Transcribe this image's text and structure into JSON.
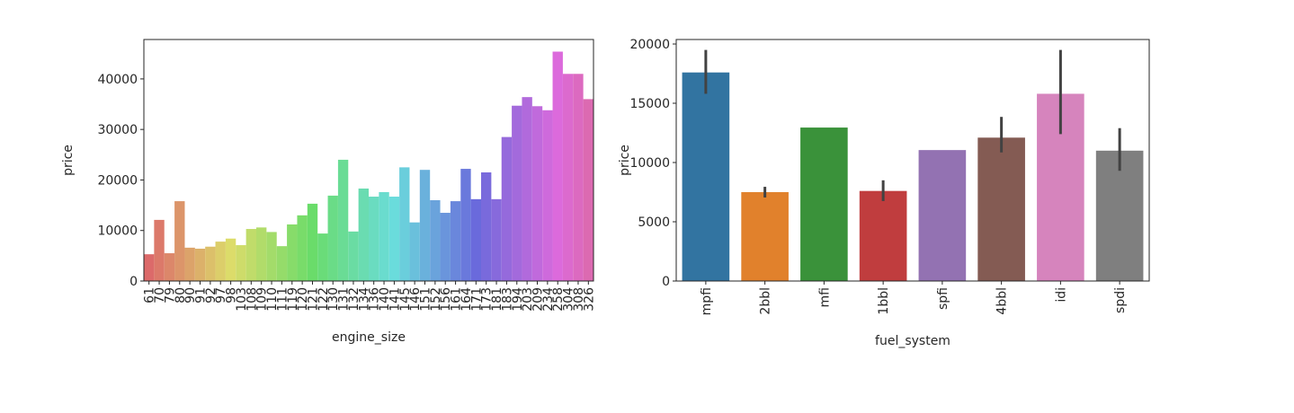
{
  "chart_data": [
    {
      "type": "bar",
      "xlabel": "engine_size",
      "ylabel": "price",
      "palette": "husl",
      "categories": [
        "61",
        "70",
        "79",
        "80",
        "90",
        "91",
        "92",
        "97",
        "98",
        "103",
        "108",
        "109",
        "110",
        "111",
        "119",
        "120",
        "121",
        "122",
        "130",
        "131",
        "132",
        "134",
        "136",
        "140",
        "141",
        "145",
        "146",
        "151",
        "152",
        "156",
        "161",
        "164",
        "171",
        "173",
        "181",
        "183",
        "194",
        "203",
        "209",
        "234",
        "258",
        "304",
        "308",
        "326"
      ],
      "values": [
        5300,
        12100,
        5500,
        15800,
        6600,
        6400,
        6800,
        7800,
        8400,
        7100,
        10300,
        10600,
        9700,
        6900,
        11200,
        13000,
        15300,
        9400,
        16900,
        24000,
        9800,
        18300,
        16700,
        17600,
        16700,
        22500,
        11600,
        22000,
        16000,
        13500,
        15800,
        22200,
        16200,
        21500,
        16200,
        28500,
        34700,
        36400,
        34600,
        33800,
        45400,
        41000,
        41000,
        36000
      ],
      "ylim": [
        0,
        47800
      ],
      "yticks": [
        0,
        10000,
        20000,
        30000,
        40000
      ]
    },
    {
      "type": "bar",
      "xlabel": "fuel_system",
      "ylabel": "price",
      "categories": [
        "mpfi",
        "2bbl",
        "mfi",
        "1bbl",
        "spfi",
        "4bbl",
        "idi",
        "spdi"
      ],
      "values": [
        17600,
        7500,
        12950,
        7600,
        11050,
        12100,
        15800,
        11000
      ],
      "ci": [
        [
          15800,
          19500
        ],
        [
          7050,
          7950
        ],
        null,
        [
          6750,
          8500
        ],
        null,
        [
          10850,
          13850
        ],
        [
          12400,
          19500
        ],
        [
          9300,
          12900
        ]
      ],
      "colors": [
        "#3274a1",
        "#e1812c",
        "#3a923a",
        "#c03d3e",
        "#9372b2",
        "#845b53",
        "#d684bd",
        "#7f7f7f"
      ],
      "ylim": [
        0,
        20380
      ],
      "yticks": [
        0,
        5000,
        10000,
        15000,
        20000
      ]
    }
  ]
}
